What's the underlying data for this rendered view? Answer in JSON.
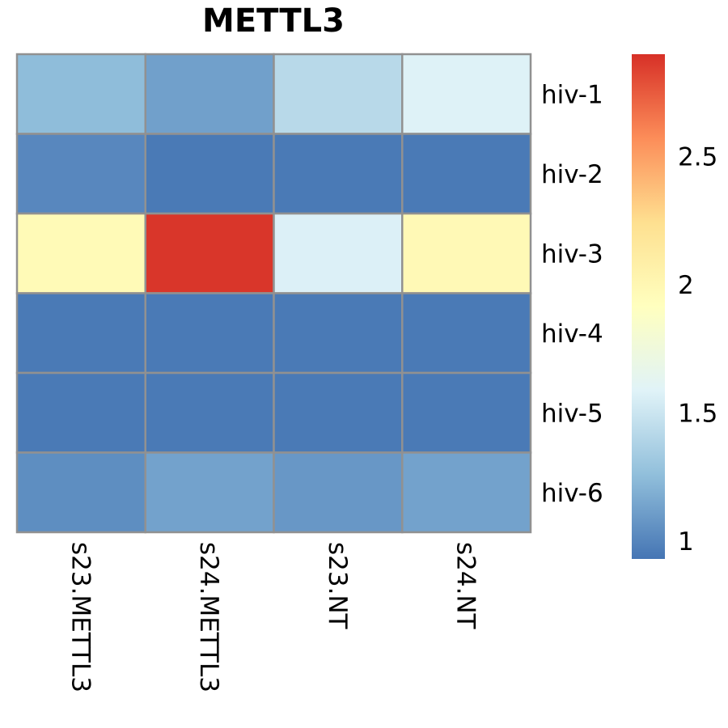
{
  "chart_data": {
    "type": "heatmap",
    "title": "METTL3",
    "columns": [
      "s23.METTL3",
      "s24.METTL3",
      "s23.NT",
      "s24.NT"
    ],
    "rows": [
      "hiv-1",
      "hiv-2",
      "hiv-3",
      "hiv-4",
      "hiv-5",
      "hiv-6"
    ],
    "values": [
      [
        1.25,
        1.12,
        1.42,
        1.58
      ],
      [
        1.01,
        0.95,
        0.95,
        0.95
      ],
      [
        1.97,
        2.88,
        1.57,
        1.98
      ],
      [
        0.95,
        0.95,
        0.95,
        0.95
      ],
      [
        0.95,
        0.95,
        0.95,
        0.95
      ],
      [
        1.04,
        1.13,
        1.08,
        1.13
      ]
    ],
    "colorbar": {
      "min": 0.93,
      "max": 2.9,
      "ticks": [
        1,
        1.5,
        2,
        2.5
      ],
      "tick_labels": [
        "1",
        "1.5",
        "2",
        "2.5"
      ],
      "position": "right"
    },
    "colors": {
      "palette": [
        "#4575b4",
        "#91bfdb",
        "#e0f3f8",
        "#ffffbf",
        "#fee090",
        "#fc8d59",
        "#d73027"
      ],
      "cell_border": "#919191"
    },
    "grid": true,
    "legend": "right"
  }
}
